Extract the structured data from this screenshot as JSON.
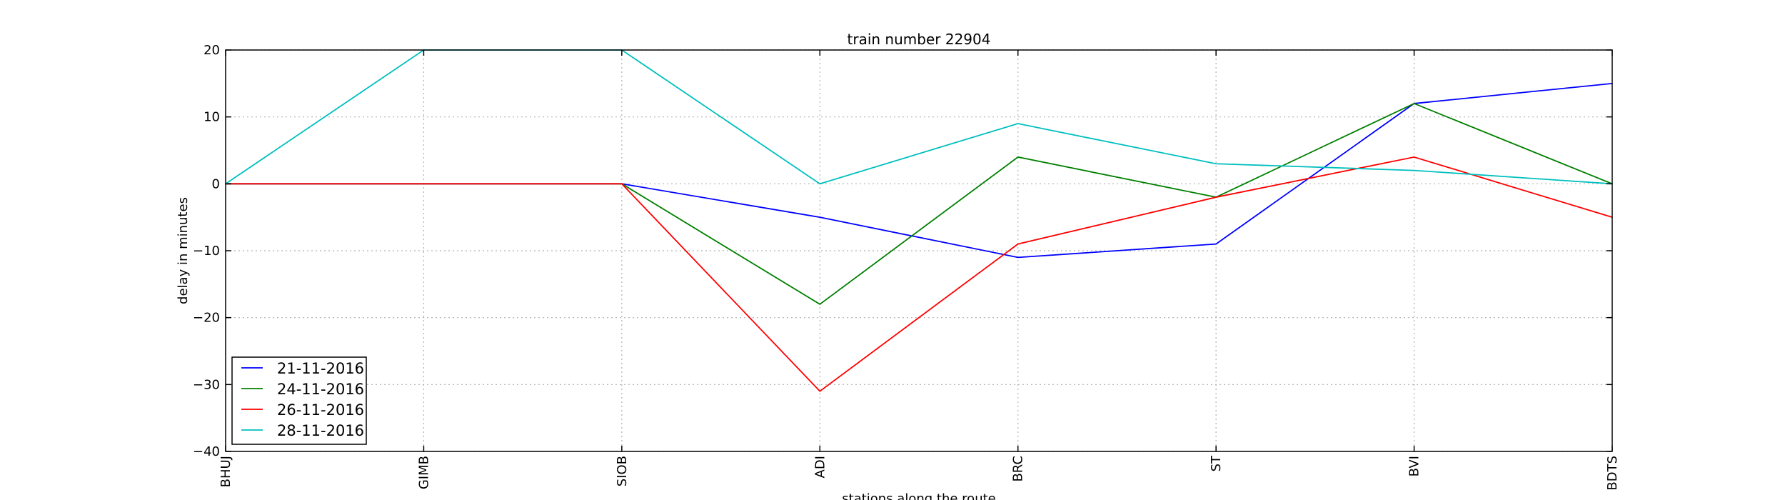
{
  "chart_data": {
    "type": "line",
    "title": "train number 22904",
    "xlabel": "stations along the route",
    "ylabel": "delay in minutes",
    "categories": [
      "BHUJ",
      "GIMB",
      "SIOB",
      "ADI",
      "BRC",
      "ST",
      "BVI",
      "BDTS"
    ],
    "ylim": [
      -40,
      20
    ],
    "yticks": [
      -40,
      -30,
      -20,
      -10,
      0,
      10,
      20
    ],
    "ytick_labels": [
      "−40",
      "−30",
      "−20",
      "−10",
      "0",
      "10",
      "20"
    ],
    "grid": true,
    "legend_position": "lower-left",
    "series": [
      {
        "name": "21-11-2016",
        "color": "#0000ff",
        "values": [
          0,
          0,
          0,
          -5,
          -11,
          -9,
          12,
          15
        ]
      },
      {
        "name": "24-11-2016",
        "color": "#008000",
        "values": [
          0,
          0,
          0,
          -18,
          4,
          -2,
          12,
          0
        ]
      },
      {
        "name": "26-11-2016",
        "color": "#ff0000",
        "values": [
          0,
          0,
          0,
          -31,
          -9,
          -2,
          4,
          -5
        ]
      },
      {
        "name": "28-11-2016",
        "color": "#00bfbf",
        "values": [
          0,
          20,
          20,
          0,
          9,
          3,
          2,
          0
        ]
      }
    ]
  }
}
